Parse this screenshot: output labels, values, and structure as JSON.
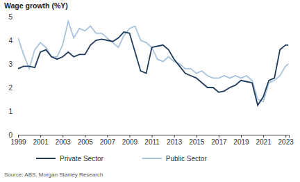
{
  "chart_data": {
    "type": "line",
    "title": "Wage growth (%Y)",
    "source": "Source: ABS, Morgan Stanley Research",
    "x": [
      1999,
      1999.5,
      2000,
      2000.5,
      2001,
      2001.5,
      2002,
      2002.5,
      2003,
      2003.5,
      2004,
      2004.5,
      2005,
      2005.5,
      2006,
      2006.5,
      2007,
      2007.5,
      2008,
      2008.5,
      2009,
      2009.5,
      2010,
      2010.5,
      2011,
      2011.5,
      2012,
      2012.5,
      2013,
      2013.5,
      2014,
      2014.5,
      2015,
      2015.5,
      2016,
      2016.5,
      2017,
      2017.5,
      2018,
      2018.5,
      2019,
      2019.5,
      2020,
      2020.5,
      2021,
      2021.5,
      2022,
      2022.5,
      2023,
      2023.25
    ],
    "series": [
      {
        "name": "Private Sector",
        "color": "#1f3b5c",
        "values": [
          2.8,
          2.9,
          2.9,
          2.85,
          3.5,
          3.6,
          3.3,
          3.2,
          3.3,
          3.5,
          3.3,
          3.4,
          3.4,
          3.8,
          4.0,
          4.05,
          4.0,
          3.95,
          4.1,
          4.35,
          4.3,
          3.5,
          2.7,
          2.6,
          3.7,
          3.75,
          3.8,
          3.6,
          3.2,
          2.9,
          2.6,
          2.5,
          2.4,
          2.2,
          2.0,
          2.0,
          1.8,
          1.85,
          2.0,
          2.1,
          2.3,
          2.25,
          2.2,
          1.25,
          1.6,
          2.3,
          2.4,
          3.6,
          3.8,
          3.8
        ]
      },
      {
        "name": "Public Sector",
        "color": "#a9c4dc",
        "values": [
          4.1,
          3.4,
          2.8,
          3.6,
          3.9,
          3.7,
          3.3,
          3.3,
          3.8,
          4.8,
          4.1,
          4.5,
          4.4,
          4.6,
          4.3,
          4.3,
          4.1,
          3.9,
          3.7,
          4.2,
          4.5,
          4.6,
          4.0,
          3.9,
          3.7,
          3.2,
          3.1,
          3.3,
          3.1,
          3.0,
          2.8,
          2.8,
          2.6,
          2.7,
          2.5,
          2.4,
          2.4,
          2.5,
          2.4,
          2.5,
          2.4,
          2.5,
          2.3,
          1.5,
          1.4,
          2.2,
          2.3,
          2.5,
          2.9,
          3.0
        ]
      }
    ],
    "xlim": [
      1999,
      2023.3
    ],
    "xticks": [
      1999,
      2001,
      2003,
      2005,
      2007,
      2009,
      2011,
      2013,
      2015,
      2017,
      2019,
      2021,
      2023
    ],
    "ylim": [
      0,
      5
    ],
    "yticks": [
      0,
      1,
      2,
      3,
      4,
      5
    ],
    "grid": false,
    "legend": "bottom"
  }
}
